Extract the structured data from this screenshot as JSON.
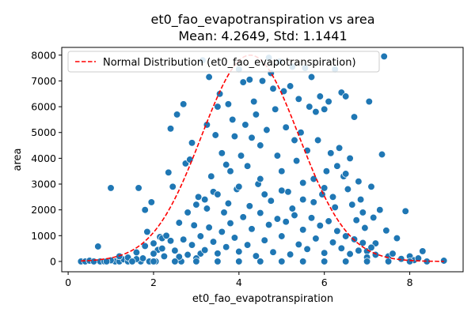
{
  "chart_data": {
    "type": "scatter",
    "title": "et0_fao_evapotranspiration vs area",
    "subtitle": "Mean: 4.2649, Std: 1.1441",
    "xlabel": "et0_fao_evapotranspiration",
    "ylabel": "area",
    "xlim": [
      -0.15,
      9.25
    ],
    "ylim": [
      -400,
      8300
    ],
    "xticks": [
      0,
      2,
      4,
      6,
      8
    ],
    "yticks": [
      0,
      1000,
      2000,
      3000,
      4000,
      5000,
      6000,
      7000,
      8000
    ],
    "grid": false,
    "legend": {
      "placement": "top-left",
      "entries": [
        "Normal Distribution (et0_fao_evapotranspiration)"
      ]
    },
    "colors": {
      "points": "#1f77b4",
      "curve": "#ff0000"
    },
    "series": [
      {
        "kind": "points",
        "points": [
          [
            0.3,
            0
          ],
          [
            0.4,
            0
          ],
          [
            0.5,
            30
          ],
          [
            0.6,
            0
          ],
          [
            0.7,
            580
          ],
          [
            0.75,
            0
          ],
          [
            0.85,
            0
          ],
          [
            1.0,
            2850
          ],
          [
            1.1,
            0
          ],
          [
            1.2,
            0
          ],
          [
            1.3,
            80
          ],
          [
            1.4,
            0
          ],
          [
            1.5,
            0
          ],
          [
            1.6,
            350
          ],
          [
            1.65,
            2850
          ],
          [
            1.7,
            0
          ],
          [
            1.75,
            120
          ],
          [
            1.8,
            2000
          ],
          [
            1.85,
            1150
          ],
          [
            1.9,
            0
          ],
          [
            1.95,
            2300
          ],
          [
            2.0,
            700
          ],
          [
            2.05,
            0
          ],
          [
            2.1,
            450
          ],
          [
            2.15,
            950
          ],
          [
            2.2,
            900
          ],
          [
            2.25,
            200
          ],
          [
            2.3,
            1000
          ],
          [
            2.35,
            3450
          ],
          [
            2.4,
            5150
          ],
          [
            2.45,
            2900
          ],
          [
            2.5,
            0
          ],
          [
            2.55,
            5700
          ],
          [
            2.6,
            1500
          ],
          [
            2.65,
            0
          ],
          [
            2.7,
            6100
          ],
          [
            2.75,
            3800
          ],
          [
            2.8,
            1900
          ],
          [
            2.85,
            3950
          ],
          [
            2.9,
            4600
          ],
          [
            2.95,
            1400
          ],
          [
            3.0,
            2200
          ],
          [
            3.05,
            2500
          ],
          [
            3.1,
            300
          ],
          [
            3.15,
            7800
          ],
          [
            3.2,
            2400
          ],
          [
            3.25,
            5300
          ],
          [
            3.3,
            7150
          ],
          [
            3.35,
            3300
          ],
          [
            3.4,
            2700
          ],
          [
            3.45,
            4900
          ],
          [
            3.5,
            6000
          ],
          [
            3.55,
            6500
          ],
          [
            3.6,
            4200
          ],
          [
            3.65,
            1900
          ],
          [
            3.7,
            3750
          ],
          [
            3.75,
            6100
          ],
          [
            3.8,
            3500
          ],
          [
            3.85,
            5500
          ],
          [
            3.9,
            4850
          ],
          [
            3.95,
            2800
          ],
          [
            4.0,
            7450
          ],
          [
            4.05,
            4100
          ],
          [
            4.1,
            6950
          ],
          [
            4.15,
            5300
          ],
          [
            4.2,
            3700
          ],
          [
            4.25,
            7050
          ],
          [
            4.3,
            4800
          ],
          [
            4.35,
            6200
          ],
          [
            4.4,
            5700
          ],
          [
            4.45,
            3000
          ],
          [
            4.5,
            4500
          ],
          [
            4.55,
            7000
          ],
          [
            4.6,
            2600
          ],
          [
            4.65,
            5100
          ],
          [
            4.7,
            7900
          ],
          [
            4.75,
            7300
          ],
          [
            4.8,
            6700
          ],
          [
            4.85,
            5900
          ],
          [
            4.9,
            4100
          ],
          [
            4.95,
            7750
          ],
          [
            5.0,
            3500
          ],
          [
            5.05,
            6600
          ],
          [
            5.1,
            5200
          ],
          [
            5.15,
            2700
          ],
          [
            5.2,
            6800
          ],
          [
            5.25,
            7550
          ],
          [
            5.3,
            4700
          ],
          [
            5.35,
            3900
          ],
          [
            5.4,
            6300
          ],
          [
            5.45,
            5000
          ],
          [
            5.5,
            2400
          ],
          [
            5.55,
            7500
          ],
          [
            5.6,
            4300
          ],
          [
            5.65,
            6000
          ],
          [
            5.7,
            7150
          ],
          [
            5.75,
            3200
          ],
          [
            5.8,
            5800
          ],
          [
            5.85,
            4700
          ],
          [
            5.9,
            6400
          ],
          [
            5.95,
            2600
          ],
          [
            6.0,
            5900
          ],
          [
            6.05,
            3500
          ],
          [
            6.1,
            6200
          ],
          [
            6.15,
            4200
          ],
          [
            6.2,
            2500
          ],
          [
            6.25,
            7450
          ],
          [
            6.3,
            3700
          ],
          [
            6.35,
            4400
          ],
          [
            6.4,
            6550
          ],
          [
            6.45,
            3300
          ],
          [
            6.5,
            6400
          ],
          [
            6.55,
            2800
          ],
          [
            6.6,
            4000
          ],
          [
            6.65,
            2200
          ],
          [
            6.7,
            5600
          ],
          [
            6.75,
            1600
          ],
          [
            6.8,
            3100
          ],
          [
            6.85,
            2400
          ],
          [
            6.9,
            1900
          ],
          [
            6.95,
            1300
          ],
          [
            7.0,
            400
          ],
          [
            7.05,
            6200
          ],
          [
            7.1,
            2900
          ],
          [
            7.15,
            1700
          ],
          [
            7.2,
            700
          ],
          [
            7.3,
            2000
          ],
          [
            7.35,
            4150
          ],
          [
            7.4,
            7950
          ],
          [
            7.45,
            1200
          ],
          [
            7.5,
            200
          ],
          [
            7.6,
            300
          ],
          [
            7.7,
            900
          ],
          [
            7.8,
            100
          ],
          [
            7.9,
            1950
          ],
          [
            8.0,
            200
          ],
          [
            8.1,
            50
          ],
          [
            8.2,
            120
          ],
          [
            8.3,
            400
          ],
          [
            8.4,
            0
          ],
          [
            8.8,
            30
          ],
          [
            2.5,
            420
          ],
          [
            2.6,
            180
          ],
          [
            2.7,
            850
          ],
          [
            2.8,
            260
          ],
          [
            2.9,
            640
          ],
          [
            3.0,
            120
          ],
          [
            3.1,
            980
          ],
          [
            3.2,
            440
          ],
          [
            3.3,
            1320
          ],
          [
            3.4,
            760
          ],
          [
            3.5,
            310
          ],
          [
            3.6,
            1150
          ],
          [
            3.7,
            560
          ],
          [
            3.8,
            1480
          ],
          [
            3.9,
            920
          ],
          [
            4.0,
            380
          ],
          [
            4.1,
            1720
          ],
          [
            4.2,
            640
          ],
          [
            4.3,
            1260
          ],
          [
            4.4,
            210
          ],
          [
            4.5,
            1880
          ],
          [
            4.6,
            820
          ],
          [
            4.7,
            1420
          ],
          [
            4.8,
            360
          ],
          [
            4.9,
            1650
          ],
          [
            5.0,
            980
          ],
          [
            5.1,
            1540
          ],
          [
            5.2,
            270
          ],
          [
            5.3,
            1790
          ],
          [
            5.4,
            660
          ],
          [
            5.5,
            1230
          ],
          [
            5.6,
            480
          ],
          [
            5.7,
            1690
          ],
          [
            5.8,
            890
          ],
          [
            5.9,
            1390
          ],
          [
            6.0,
            330
          ],
          [
            6.1,
            1560
          ],
          [
            6.2,
            740
          ],
          [
            6.3,
            1180
          ],
          [
            6.4,
            510
          ],
          [
            6.5,
            980
          ],
          [
            6.6,
            290
          ],
          [
            6.7,
            860
          ],
          [
            6.8,
            420
          ],
          [
            6.9,
            720
          ],
          [
            7.0,
            160
          ],
          [
            7.1,
            540
          ],
          [
            7.2,
            260
          ],
          [
            3.25,
            2050
          ],
          [
            3.75,
            2250
          ],
          [
            4.25,
            2150
          ],
          [
            4.75,
            2350
          ],
          [
            5.25,
            2050
          ],
          [
            5.75,
            2300
          ],
          [
            6.25,
            2100
          ],
          [
            3.5,
            2600
          ],
          [
            4.0,
            2900
          ],
          [
            4.5,
            3200
          ],
          [
            5.0,
            2750
          ],
          [
            5.5,
            3050
          ],
          [
            6.0,
            2850
          ],
          [
            6.5,
            3400
          ],
          [
            1.2,
            200
          ],
          [
            1.4,
            150
          ],
          [
            1.8,
            600
          ],
          [
            2.0,
            300
          ],
          [
            2.2,
            500
          ],
          [
            2.4,
            800
          ],
          [
            1.6,
            90
          ],
          [
            1.0,
            40
          ],
          [
            0.9,
            0
          ],
          [
            1.5,
            0
          ],
          [
            2.0,
            0
          ],
          [
            2.5,
            0
          ],
          [
            3.0,
            0
          ],
          [
            3.5,
            0
          ],
          [
            4.0,
            0
          ],
          [
            4.5,
            0
          ],
          [
            5.0,
            0
          ],
          [
            5.5,
            0
          ],
          [
            6.0,
            0
          ],
          [
            6.5,
            0
          ],
          [
            7.0,
            0
          ],
          [
            7.5,
            0
          ],
          [
            8.0,
            0
          ]
        ]
      },
      {
        "kind": "curve",
        "name": "Normal Distribution (et0_fao_evapotranspiration)",
        "mean": 4.2649,
        "std": 1.1441,
        "peak": 8000,
        "x_range": [
          0.3,
          8.8
        ]
      }
    ]
  }
}
